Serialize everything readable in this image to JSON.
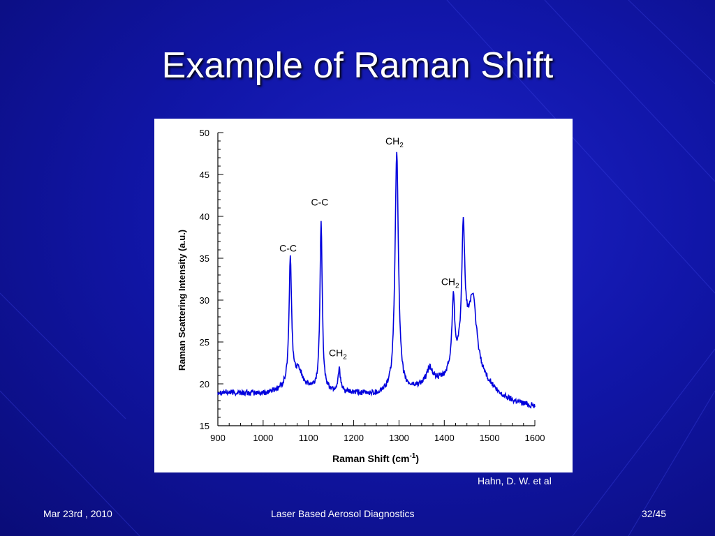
{
  "slide": {
    "title": "Example of Raman Shift",
    "credit": "Hahn, D. W. et al",
    "footer_date": "Mar 23rd , 2010",
    "footer_center": "Laser Based Aerosol Diagnostics",
    "footer_page": "32/45"
  },
  "colors": {
    "background": "#1116a8",
    "series": "#0000dd",
    "axis": "#000000"
  },
  "chart_data": {
    "type": "line",
    "xlabel": "Raman Shift (cm",
    "xlabel_sup": "-1",
    "xlabel_suffix": ")",
    "ylabel": "Raman Scattering Intensity (a.u.)",
    "xlim": [
      900,
      1600
    ],
    "ylim": [
      15,
      50
    ],
    "xticks": [
      900,
      1000,
      1100,
      1200,
      1300,
      1400,
      1500,
      1600
    ],
    "yticks": [
      15,
      20,
      25,
      30,
      35,
      40,
      45,
      50
    ],
    "baseline": [
      [
        900,
        19
      ],
      [
        1000,
        18.8
      ],
      [
        1050,
        19.3
      ],
      [
        1150,
        19
      ],
      [
        1250,
        18.7
      ],
      [
        1320,
        19.2
      ],
      [
        1400,
        20.5
      ],
      [
        1450,
        24
      ],
      [
        1480,
        21
      ],
      [
        1520,
        18.7
      ],
      [
        1550,
        18
      ],
      [
        1600,
        17.3
      ]
    ],
    "peaks": [
      {
        "center": 1060,
        "height": 15,
        "width": 3.5
      },
      {
        "center": 1078,
        "height": 2.2,
        "width": 12
      },
      {
        "center": 1128,
        "height": 20.5,
        "width": 3
      },
      {
        "center": 1168,
        "height": 2.8,
        "width": 3
      },
      {
        "center": 1295,
        "height": 28.8,
        "width": 4.5
      },
      {
        "center": 1368,
        "height": 1.8,
        "width": 8
      },
      {
        "center": 1420,
        "height": 8.2,
        "width": 3.5
      },
      {
        "center": 1442,
        "height": 14.5,
        "width": 4
      },
      {
        "center": 1463,
        "height": 7.5,
        "width": 10
      }
    ],
    "annotations": [
      {
        "main": "C-C",
        "sub": "",
        "x": 1055,
        "y": 35.8
      },
      {
        "main": "C-C",
        "sub": "",
        "x": 1125,
        "y": 41.3
      },
      {
        "main": "CH",
        "sub": "2",
        "x": 1165,
        "y": 23.3
      },
      {
        "main": "CH",
        "sub": "2",
        "x": 1290,
        "y": 48.6
      },
      {
        "main": "CH",
        "sub": "2",
        "x": 1413,
        "y": 31.8
      }
    ]
  }
}
